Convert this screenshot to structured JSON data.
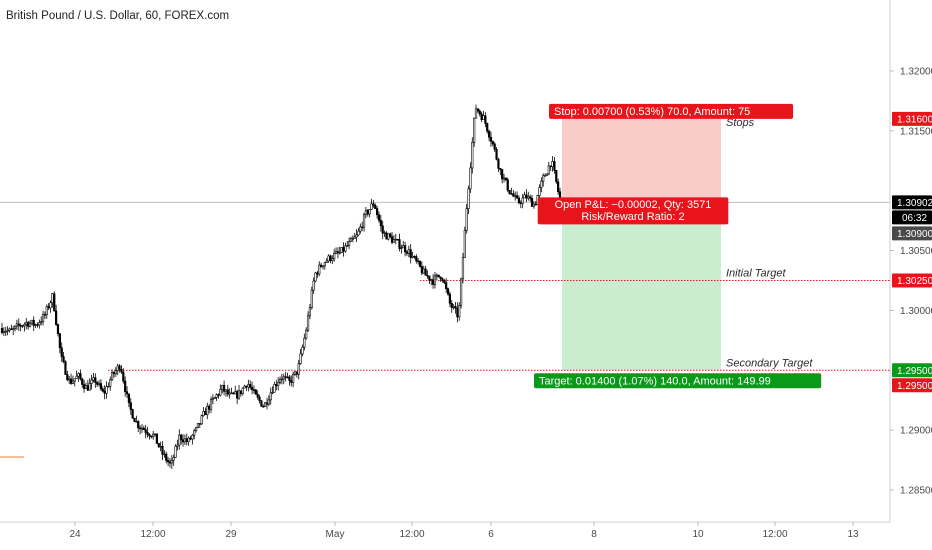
{
  "chart_title": "British Pound / U.S. Dollar, 60, FOREX.com",
  "colors": {
    "background": "#ffffff",
    "candle": "#000000",
    "stop_zone": "#f7b9b7",
    "target_zone": "#c3e9c8",
    "stop_badge": "#e8141c",
    "target_badge": "#0a9a1a",
    "level_line": "#e8141c",
    "current_price_badge": "#000000",
    "timer_badge": "#4a4a4a"
  },
  "chart_data": {
    "type": "line",
    "symbol": "British Pound / U.S. Dollar",
    "interval": "60",
    "source": "FOREX.com",
    "ylim": [
      1.2835,
      1.3235
    ],
    "y_ticks": [
      "1.32000",
      "1.31500",
      "1.30500",
      "1.30000",
      "1.29000",
      "1.28500"
    ],
    "x_ticks": [
      "24",
      "12:00",
      "29",
      "May",
      "12:00",
      "6",
      "8",
      "10",
      "12:00",
      "13"
    ],
    "series": [
      {
        "values": [
          1.2985,
          1.2982,
          1.2987,
          1.299,
          1.2988,
          1.2995,
          1.3012,
          1.296,
          1.294,
          1.2945,
          1.2935,
          1.2942,
          1.293,
          1.2945,
          1.2955,
          1.292,
          1.2905,
          1.29,
          1.2895,
          1.288,
          1.287,
          1.2895,
          1.289,
          1.29,
          1.2915,
          1.2925,
          1.2935,
          1.2928,
          1.293,
          1.294,
          1.2928,
          1.292,
          1.2935,
          1.2945,
          1.294,
          1.295,
          1.2985,
          1.303,
          1.304,
          1.3045,
          1.3048,
          1.3055,
          1.3062,
          1.308,
          1.309,
          1.3065,
          1.306,
          1.3055,
          1.305,
          1.304,
          1.303,
          1.3025,
          1.303,
          1.3005,
          1.2995,
          1.309,
          1.317,
          1.316,
          1.314,
          1.3115,
          1.31,
          1.309,
          1.3095,
          1.3088,
          1.311,
          1.3125,
          1.3092
        ]
      }
    ],
    "position": {
      "entry": 1.30902,
      "stop": 1.316,
      "target": 1.295,
      "stop_label": "Stop: 0.00700 (0.53%) 70.0, Amount: 75",
      "target_label": "Target: 0.01400 (1.07%) 140.0, Amount: 149.99",
      "pnl_label": "Open P&L: −0.00002, Qty: 3571",
      "ratio_label": "Risk/Reward Ratio: 2"
    },
    "levels": [
      {
        "label": "Stops",
        "value": 1.316,
        "price_label": "1.31600"
      },
      {
        "label": "Initial Target",
        "value": 1.3025,
        "price_label": "1.30250"
      },
      {
        "label": "Secondary Target",
        "value": 1.295,
        "price_label": "1.29500"
      }
    ],
    "current_price": {
      "value": 1.30902,
      "label": "1.30902",
      "timer": "06:32"
    },
    "secondary_price": {
      "value": 1.309,
      "label": "1.30900"
    },
    "target_axis_label": "1.29500",
    "grid": false
  }
}
